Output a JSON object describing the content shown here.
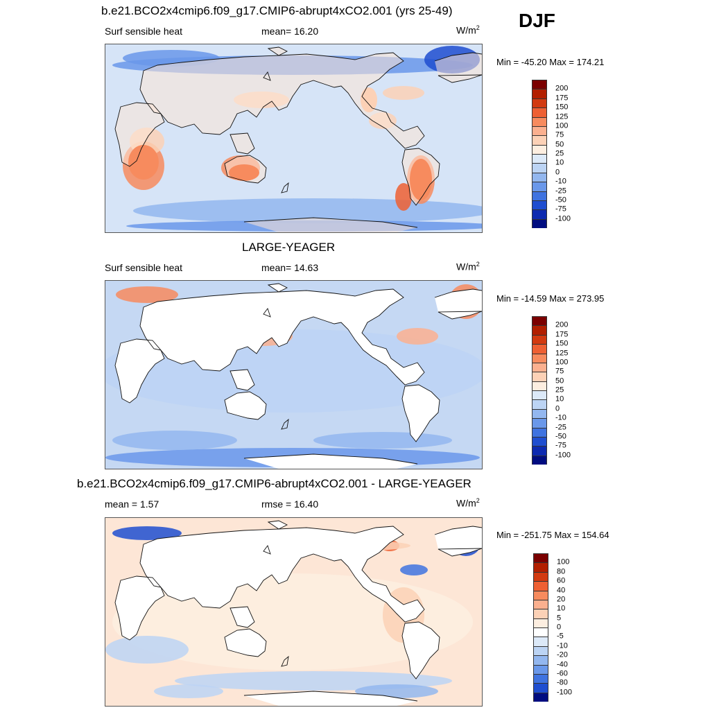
{
  "season": "DJF",
  "panels": [
    {
      "title": "b.e21.BCO2x4cmip6.f09_g17.CMIP6-abrupt4xCO2.001 (yrs 25-49)",
      "left_label": "Surf sensible heat",
      "mid_label": "mean=  16.20",
      "units_base": "W/m",
      "units_exp": "2",
      "minmax": "Min = -45.20 Max = 174.21",
      "colorbar": {
        "labels": [
          "200",
          "175",
          "150",
          "125",
          "100",
          "75",
          "50",
          "25",
          "10",
          "0",
          "-10",
          "-25",
          "-50",
          "-75",
          "-100"
        ],
        "colors": [
          "#7b0000",
          "#b21f00",
          "#d23a10",
          "#ee6033",
          "#f78b5e",
          "#fbb08f",
          "#fcd1b6",
          "#fdeee0",
          "#dce9f8",
          "#bcd4f4",
          "#93b7ef",
          "#6a98ea",
          "#3f73e0",
          "#1f4ed0",
          "#0d2ab0",
          "#000d80"
        ]
      },
      "background": "#d6e4f7",
      "land_shaded": true
    },
    {
      "title": "LARGE-YEAGER",
      "left_label": "Surf sensible heat",
      "mid_label": "mean=  14.63",
      "units_base": "W/m",
      "units_exp": "2",
      "minmax": "Min = -14.59 Max = 273.95",
      "colorbar": {
        "labels": [
          "200",
          "175",
          "150",
          "125",
          "100",
          "75",
          "50",
          "25",
          "10",
          "0",
          "-10",
          "-25",
          "-50",
          "-75",
          "-100"
        ],
        "colors": [
          "#7b0000",
          "#b21f00",
          "#d23a10",
          "#ee6033",
          "#f78b5e",
          "#fbb08f",
          "#fcd1b6",
          "#fdeee0",
          "#dce9f8",
          "#bcd4f4",
          "#93b7ef",
          "#6a98ea",
          "#3f73e0",
          "#1f4ed0",
          "#0d2ab0",
          "#000d80"
        ]
      },
      "background": "#c5d8f3",
      "land_shaded": false
    },
    {
      "title": "b.e21.BCO2x4cmip6.f09_g17.CMIP6-abrupt4xCO2.001 - LARGE-YEAGER",
      "left_label": "mean =   1.57",
      "mid_label": "rmse =  16.40",
      "units_base": "W/m",
      "units_exp": "2",
      "minmax": "Min = -251.75 Max = 154.64",
      "colorbar": {
        "labels": [
          "100",
          "80",
          "60",
          "40",
          "20",
          "10",
          "5",
          "0",
          "-5",
          "-10",
          "-20",
          "-40",
          "-60",
          "-80",
          "-100"
        ],
        "colors": [
          "#7b0000",
          "#b21f00",
          "#d23a10",
          "#ee6033",
          "#f78b5e",
          "#fbb08f",
          "#fcd1b6",
          "#fdeee0",
          "#ffffff",
          "#dce9f8",
          "#bcd4f4",
          "#93b7ef",
          "#6a98ea",
          "#3f73e0",
          "#1f4ed0",
          "#000d80"
        ]
      },
      "background": "#fde6d6",
      "land_shaded": false
    }
  ]
}
